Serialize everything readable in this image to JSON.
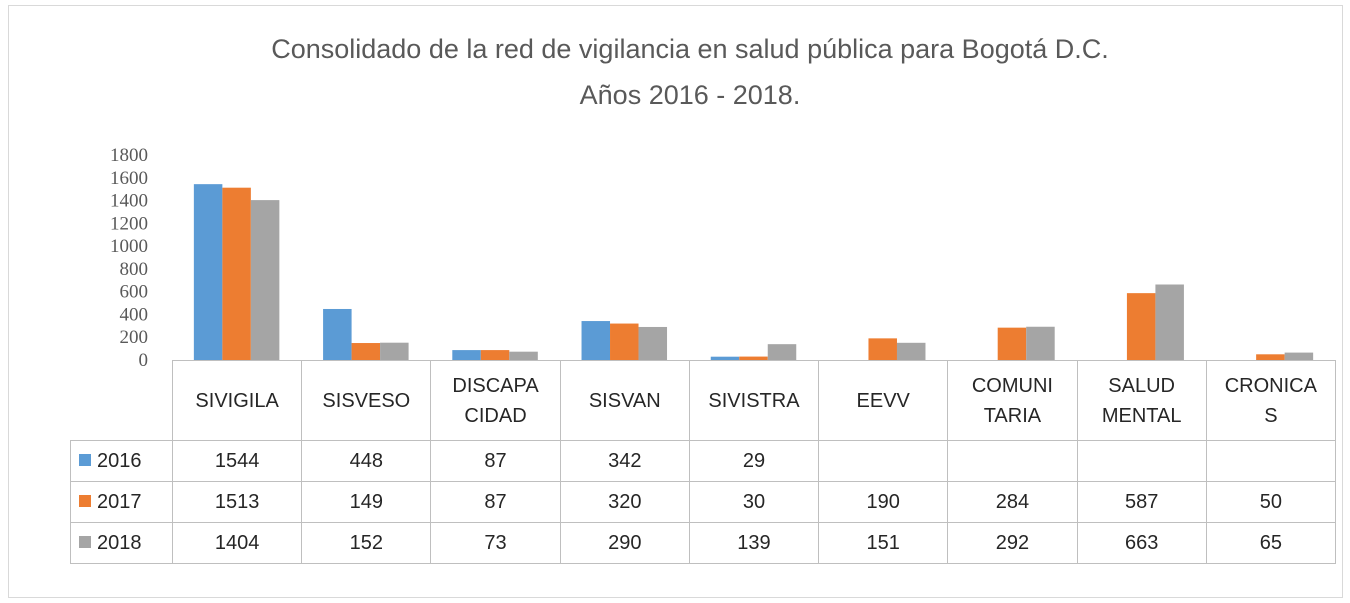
{
  "chart_data": {
    "type": "bar",
    "title": "Consolidado de la red de vigilancia en salud pública para Bogotá D.C.",
    "subtitle": "Años 2016 - 2018.",
    "categories": [
      "SIVIGILA",
      "SISVESO",
      "DISCAPA\nCIDAD",
      "SISVAN",
      "SIVISTRA",
      "EEVV",
      "COMUNI\nTARIA",
      "SALUD\nMENTAL",
      "CRONICA\nS"
    ],
    "series": [
      {
        "name": "2016",
        "color": "#5b9bd5",
        "values": [
          1544,
          448,
          87,
          342,
          29,
          null,
          null,
          null,
          null
        ]
      },
      {
        "name": "2017",
        "color": "#ed7d31",
        "values": [
          1513,
          149,
          87,
          320,
          30,
          190,
          284,
          587,
          50
        ]
      },
      {
        "name": "2018",
        "color": "#a5a5a5",
        "values": [
          1404,
          152,
          73,
          290,
          139,
          151,
          292,
          663,
          65
        ]
      }
    ],
    "ylim": [
      0,
      1800
    ],
    "yticks": [
      0,
      200,
      400,
      600,
      800,
      1000,
      1200,
      1400,
      1600,
      1800
    ],
    "grid": false,
    "data_table": true
  }
}
